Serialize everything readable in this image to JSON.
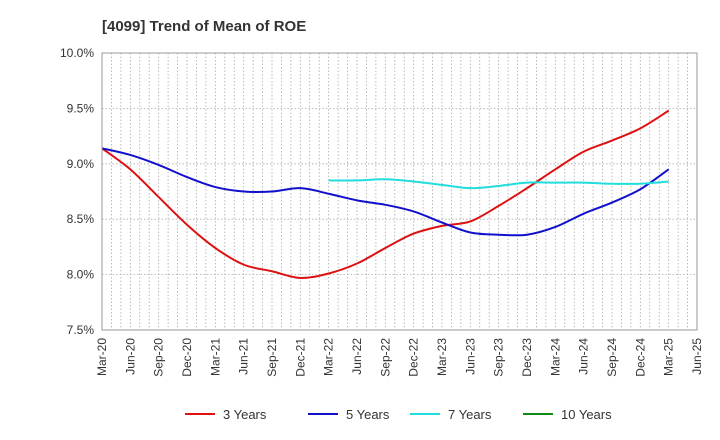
{
  "chart_data": {
    "type": "line",
    "title": "[4099]  Trend of Mean of ROE",
    "xlabel": "",
    "ylabel": "",
    "x_ticks": [
      "Mar-20",
      "Jun-20",
      "Sep-20",
      "Dec-20",
      "Mar-21",
      "Jun-21",
      "Sep-21",
      "Dec-21",
      "Mar-22",
      "Jun-22",
      "Sep-22",
      "Dec-22",
      "Mar-23",
      "Jun-23",
      "Sep-23",
      "Dec-23",
      "Mar-24",
      "Jun-24",
      "Sep-24",
      "Dec-24",
      "Mar-25",
      "Jun-25"
    ],
    "y_ticks": [
      "7.5%",
      "8.0%",
      "8.5%",
      "9.0%",
      "9.5%",
      "10.0%"
    ],
    "ylim": [
      7.5,
      10.0
    ],
    "grid": true,
    "legend_position": "bottom",
    "series": [
      {
        "name": "3 Years",
        "color": "#dd1111",
        "values": [
          9.14,
          8.95,
          8.7,
          8.45,
          8.24,
          8.09,
          8.03,
          7.97,
          8.01,
          8.1,
          8.24,
          8.37,
          8.44,
          8.48,
          8.62,
          8.78,
          8.95,
          9.11,
          9.21,
          9.32,
          9.48,
          null
        ]
      },
      {
        "name": "5 Years",
        "color": "#1111cc",
        "values": [
          9.14,
          9.08,
          8.99,
          8.88,
          8.79,
          8.75,
          8.75,
          8.78,
          8.73,
          8.67,
          8.63,
          8.57,
          8.47,
          8.38,
          8.36,
          8.36,
          8.43,
          8.55,
          8.65,
          8.77,
          8.95,
          null
        ]
      },
      {
        "name": "7 Years",
        "color": "#22dddd",
        "values": [
          null,
          null,
          null,
          null,
          null,
          null,
          null,
          null,
          8.85,
          8.85,
          8.86,
          8.84,
          8.81,
          8.78,
          8.8,
          8.83,
          8.83,
          8.83,
          8.82,
          8.82,
          8.84,
          null
        ]
      },
      {
        "name": "10 Years",
        "color": "#118811",
        "values": [
          null,
          null,
          null,
          null,
          null,
          null,
          null,
          null,
          null,
          null,
          null,
          null,
          null,
          null,
          null,
          null,
          null,
          null,
          null,
          null,
          null,
          null
        ]
      }
    ]
  }
}
